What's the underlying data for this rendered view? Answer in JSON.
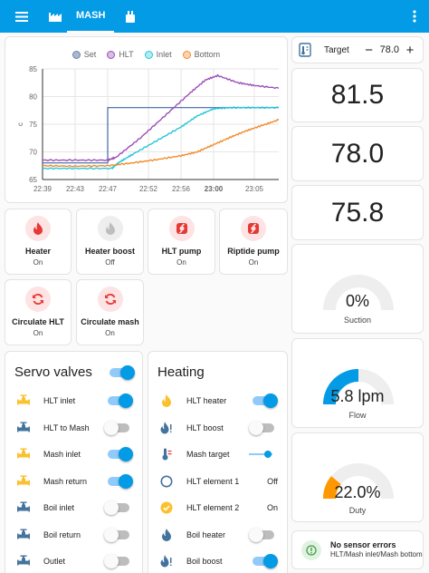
{
  "topbar": {
    "tabs": [
      {
        "icon": "factory-icon",
        "label": ""
      },
      {
        "icon": "",
        "label": "MASH"
      },
      {
        "icon": "kettle-icon",
        "label": ""
      }
    ],
    "bg_color": "#039be5"
  },
  "chart_data": {
    "type": "line",
    "legend": [
      "Set",
      "HLT",
      "Inlet",
      "Bottom"
    ],
    "colors": {
      "Set": "#3f68a8",
      "HLT": "#9b4fb7",
      "Inlet": "#26c6da",
      "Bottom": "#f08c2a"
    },
    "ylabel": "c",
    "ylim": [
      65,
      85
    ],
    "yticks": [
      "65",
      "70",
      "75",
      "80",
      "85"
    ],
    "xticks": [
      "22:39",
      "22:43",
      "22:47",
      "22:52",
      "22:56",
      "23:00",
      "23:05"
    ],
    "x_minutes_after_2239": [
      0,
      4,
      8,
      13,
      17,
      21,
      26
    ],
    "series": [
      {
        "name": "Set",
        "x": [
          0,
          8,
          8,
          29
        ],
        "y": [
          68,
          68,
          78,
          78
        ]
      },
      {
        "name": "HLT",
        "x": [
          0,
          4,
          8,
          9,
          12,
          15,
          18,
          20,
          21.5,
          24,
          26,
          29
        ],
        "y": [
          68.5,
          68.5,
          68.5,
          69,
          72.5,
          76.5,
          80.5,
          83,
          83.8,
          82.5,
          82,
          81.5
        ]
      },
      {
        "name": "Inlet",
        "x": [
          0,
          4,
          8.5,
          9.5,
          11,
          14,
          17,
          19,
          21,
          23,
          26,
          29
        ],
        "y": [
          67,
          67,
          67,
          68.2,
          69.5,
          72,
          74.5,
          76.5,
          77.8,
          78,
          78,
          78
        ]
      },
      {
        "name": "Bottom",
        "x": [
          0,
          4,
          8,
          11,
          14,
          17,
          19,
          21,
          23,
          25,
          27,
          29
        ],
        "y": [
          67.5,
          67.4,
          67.5,
          68,
          68.6,
          69.3,
          70,
          71.3,
          72.6,
          73.8,
          74.8,
          75.8
        ]
      }
    ]
  },
  "tiles": [
    {
      "name": "Heater",
      "state": "On",
      "icon": "flame-icon",
      "color": "#e53935",
      "bg": "#fde3e3"
    },
    {
      "name": "Heater boost",
      "state": "Off",
      "icon": "flame-icon",
      "color": "#bdbdbd",
      "bg": "#eeeeee"
    },
    {
      "name": "HLT pump",
      "state": "On",
      "icon": "pump-icon",
      "color": "#e53935",
      "bg": "#fde3e3"
    },
    {
      "name": "Riptide pump",
      "state": "On",
      "icon": "pump-icon",
      "color": "#e53935",
      "bg": "#fde3e3"
    },
    {
      "name": "Circulate HLT",
      "state": "On",
      "icon": "circulate-icon",
      "color": "#e53935",
      "bg": "#fde3e3"
    },
    {
      "name": "Circulate mash",
      "state": "On",
      "icon": "circulate-icon",
      "color": "#e53935",
      "bg": "#fde3e3"
    }
  ],
  "servo": {
    "title": "Servo valves",
    "master_on": true,
    "rows": [
      {
        "label": "HLT inlet",
        "on": true,
        "icon": "valve-icon",
        "color": "#fbc02d"
      },
      {
        "label": "HLT to Mash",
        "on": false,
        "icon": "valve-icon",
        "color": "#44739e"
      },
      {
        "label": "Mash inlet",
        "on": true,
        "icon": "valve-icon",
        "color": "#fbc02d"
      },
      {
        "label": "Mash return",
        "on": true,
        "icon": "valve-icon",
        "color": "#fbc02d"
      },
      {
        "label": "Boil inlet",
        "on": false,
        "icon": "valve-icon",
        "color": "#44739e"
      },
      {
        "label": "Boil return",
        "on": false,
        "icon": "valve-icon",
        "color": "#44739e"
      },
      {
        "label": "Outlet",
        "on": false,
        "icon": "valve-icon",
        "color": "#44739e"
      }
    ]
  },
  "heating": {
    "title": "Heating",
    "rows": [
      {
        "label": "HLT heater",
        "kind": "toggle",
        "on": true,
        "icon": "fire-icon",
        "color": "#fbc02d"
      },
      {
        "label": "HLT boost",
        "kind": "toggle",
        "on": false,
        "icon": "fire-alert-icon",
        "color": "#44739e"
      },
      {
        "label": "Mash target",
        "kind": "slider",
        "level": 0.8,
        "icon": "thermometer-icon",
        "color": "#44739e"
      },
      {
        "label": "HLT element 1",
        "kind": "value",
        "value": "Off",
        "icon": "circle-outline-icon",
        "color": "#44739e"
      },
      {
        "label": "HLT element 2",
        "kind": "value",
        "value": "On",
        "icon": "check-circle-icon",
        "color": "#fbc02d"
      },
      {
        "label": "Boil heater",
        "kind": "toggle",
        "on": false,
        "icon": "fire-icon",
        "color": "#44739e"
      },
      {
        "label": "Boil boost",
        "kind": "toggle",
        "on": true,
        "icon": "fire-alert-icon",
        "color": "#44739e"
      }
    ]
  },
  "right": {
    "target_label": "Target",
    "target_value": "78.0",
    "minus": "−",
    "plus": "+",
    "readings": [
      "81.5",
      "78.0",
      "75.8"
    ],
    "gauges": [
      {
        "value": "0%",
        "label": "Suction",
        "level": 0,
        "color": "#039be5"
      },
      {
        "value": "5.8 lpm",
        "label": "Flow",
        "level": 0.5,
        "color": "#039be5"
      },
      {
        "value": "22.0%",
        "label": "Duty",
        "level": 0.22,
        "color": "#ff9800"
      }
    ],
    "status_title": "No sensor errors",
    "status_sub": "HLT/Mash inlet/Mash bottom",
    "status_color": "#43a047"
  }
}
